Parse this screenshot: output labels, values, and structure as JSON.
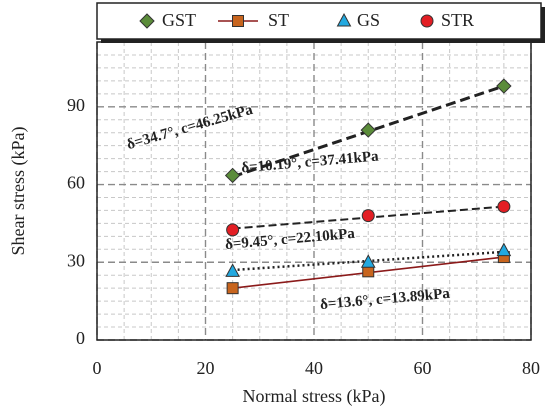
{
  "chart_data": {
    "type": "scatter",
    "x_label": "Normal stress (kPa)",
    "y_label": "Shear stress (kPa)",
    "xlim": [
      0,
      80
    ],
    "xticks": [
      0,
      20,
      40,
      60,
      80
    ],
    "ylim": [
      0,
      115
    ],
    "yticks": [
      0,
      30,
      60,
      90
    ],
    "minor_xticks": [
      5,
      10,
      15,
      25,
      30,
      35,
      45,
      50,
      55,
      65,
      70,
      75
    ],
    "minor_yticks": [
      5,
      10,
      15,
      20,
      25,
      35,
      40,
      45,
      50,
      55,
      65,
      70,
      75,
      80,
      85,
      95,
      100,
      105,
      110
    ],
    "grid": true,
    "legend": "top",
    "series": [
      {
        "name": "GST",
        "marker": "diamond",
        "color": "#5b8c3a",
        "x": [
          25,
          50,
          75
        ],
        "values": [
          63.5,
          81,
          98
        ],
        "trend_x": [
          25,
          75
        ],
        "trend": [
          63,
          98
        ],
        "trend_style": "dashed-thick",
        "trend_color": "#222222",
        "annotation": "δ=34.7°, c=46.25kPa"
      },
      {
        "name": "ST",
        "marker": "square",
        "color": "#c8651e",
        "x": [
          25,
          50,
          75
        ],
        "values": [
          20,
          26.5,
          32
        ],
        "trend_x": [
          25,
          75
        ],
        "trend": [
          20,
          32
        ],
        "trend_style": "solid",
        "trend_color": "#8b1a1a",
        "annotation": "δ=13.6°, c=13.89kPa"
      },
      {
        "name": "GS",
        "marker": "triangle",
        "color": "#22a9e0",
        "x": [
          25,
          50,
          75
        ],
        "values": [
          26.5,
          30,
          34.5
        ],
        "trend_x": [
          25,
          75
        ],
        "trend": [
          27,
          34
        ],
        "trend_style": "dotted",
        "trend_color": "#222222",
        "annotation": "δ=9.45°, c=22.10kPa"
      },
      {
        "name": "STR",
        "marker": "circle",
        "color": "#e31e24",
        "x": [
          25,
          50,
          75
        ],
        "values": [
          42.5,
          48,
          51.5
        ],
        "trend_x": [
          25,
          75
        ],
        "trend": [
          43,
          51.5
        ],
        "trend_style": "dashed",
        "trend_color": "#222222",
        "annotation": "δ=10.19°, c=37.41kPa"
      }
    ]
  }
}
